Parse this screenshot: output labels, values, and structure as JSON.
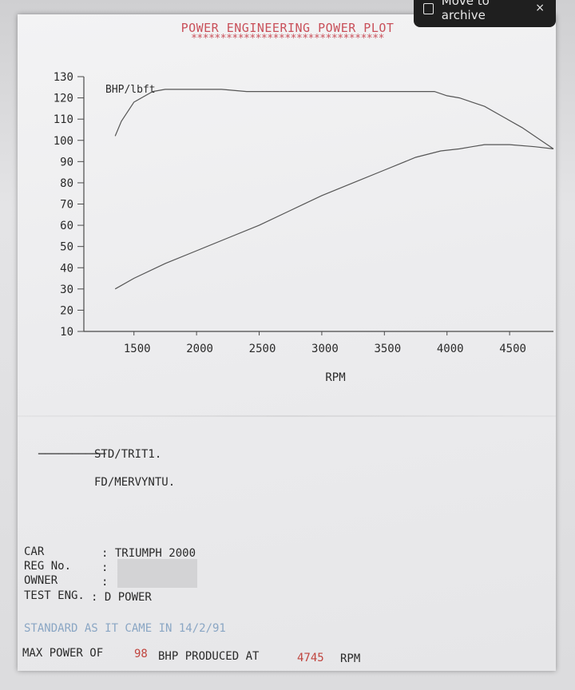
{
  "toast": {
    "label": "Move to archive",
    "close": "×"
  },
  "header": {
    "title": "POWER ENGINEERING POWER PLOT",
    "stars": "*********************************"
  },
  "chart_data": {
    "type": "line",
    "xlabel": "RPM",
    "ylabel": "BHP/lbft",
    "xlim": [
      1100,
      4850
    ],
    "ylim": [
      10,
      130
    ],
    "x_ticks": [
      1500,
      2000,
      2500,
      3000,
      3500,
      4000,
      4500
    ],
    "y_ticks": [
      10,
      20,
      30,
      40,
      50,
      60,
      70,
      80,
      90,
      100,
      110,
      120,
      130
    ],
    "grid": false,
    "series": [
      {
        "x": [
          1350,
          1400,
          1500,
          1650,
          1750,
          2000,
          2200,
          2400,
          2600,
          2800,
          3000,
          3200,
          3400,
          3600,
          3800,
          3900,
          4000,
          4100,
          4200,
          4300,
          4450,
          4600,
          4750,
          4850
        ],
        "values": [
          102,
          109,
          118,
          123,
          124,
          124,
          124,
          123,
          123,
          123,
          123,
          123,
          123,
          123,
          123,
          123,
          121,
          120,
          118,
          116,
          111,
          106,
          100,
          96
        ]
      },
      {
        "x": [
          1350,
          1500,
          1750,
          2000,
          2250,
          2500,
          2750,
          3000,
          3250,
          3500,
          3750,
          3950,
          4100,
          4200,
          4300,
          4500,
          4700,
          4850
        ],
        "values": [
          30,
          35,
          42,
          48,
          54,
          60,
          67,
          74,
          80,
          86,
          92,
          95,
          96,
          97,
          98,
          98,
          97,
          96
        ]
      }
    ]
  },
  "legend": {
    "line1": "STD/TRIT1.",
    "line2": "FD/MERVYNTU."
  },
  "details": {
    "car_label": "CAR",
    "car_value": ": TRIUMPH 2000",
    "reg_label": "REG No.",
    "reg_value": ":",
    "owner_label": "OWNER",
    "owner_value": ":",
    "test_label": "TEST ENG.",
    "test_value": ": D POWER",
    "note": "STANDARD AS IT CAME IN 14/2/91"
  },
  "summary": {
    "prefix": "MAX POWER OF",
    "power": "98",
    "middle": "BHP PRODUCED AT",
    "rpm": "4745",
    "suffix": "RPM"
  }
}
